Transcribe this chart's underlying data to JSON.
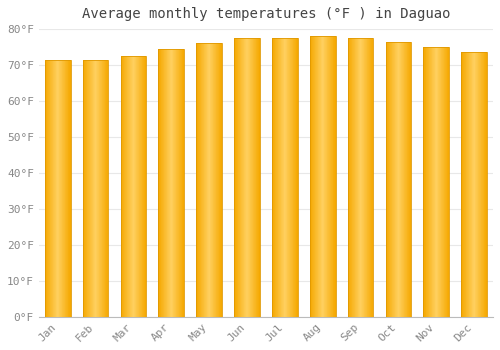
{
  "title": "Average monthly temperatures (°F ) in Daguao",
  "months": [
    "Jan",
    "Feb",
    "Mar",
    "Apr",
    "May",
    "Jun",
    "Jul",
    "Aug",
    "Sep",
    "Oct",
    "Nov",
    "Dec"
  ],
  "values": [
    71.5,
    71.5,
    72.5,
    74.5,
    76.0,
    77.5,
    77.5,
    78.0,
    77.5,
    76.5,
    75.0,
    73.5
  ],
  "bar_color_center": "#FFD060",
  "bar_color_edge": "#F5A800",
  "edge_color": "#E09800",
  "ylim": [
    0,
    80
  ],
  "yticks": [
    0,
    10,
    20,
    30,
    40,
    50,
    60,
    70,
    80
  ],
  "background_color": "#FFFFFF",
  "grid_color": "#E8E8E8",
  "title_fontsize": 10,
  "tick_fontsize": 8,
  "figsize": [
    5.0,
    3.5
  ],
  "dpi": 100
}
